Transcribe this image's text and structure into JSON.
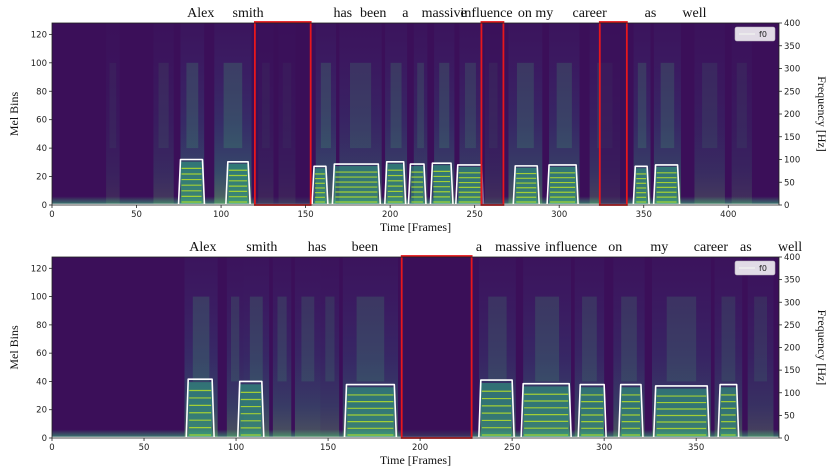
{
  "chart_data": [
    {
      "type": "heatmap",
      "title": "",
      "xlabel": "Time [Frames]",
      "ylabel": "Mel Bins",
      "ylabel_right": "Frequency [Hz]",
      "xlim": [
        0,
        430
      ],
      "ylim": [
        0,
        128
      ],
      "ylim_right": [
        0,
        400
      ],
      "x_ticks": [
        0,
        50,
        100,
        150,
        200,
        250,
        300,
        350,
        400
      ],
      "y_ticks": [
        0,
        20,
        40,
        60,
        80,
        100,
        120
      ],
      "y_ticks_right": [
        0,
        50,
        100,
        150,
        200,
        250,
        300,
        350,
        400
      ],
      "legend": {
        "label": "f0",
        "position": "top-right"
      },
      "words": [
        {
          "text": "Alex",
          "x": 88
        },
        {
          "text": "smith",
          "x": 116
        },
        {
          "text": "has",
          "x": 172
        },
        {
          "text": "been",
          "x": 190
        },
        {
          "text": "a",
          "x": 209
        },
        {
          "text": "massive",
          "x": 232
        },
        {
          "text": "influence",
          "x": 257
        },
        {
          "text": "on my",
          "x": 286
        },
        {
          "text": "career",
          "x": 318
        },
        {
          "text": "as",
          "x": 354
        },
        {
          "text": "well",
          "x": 380
        }
      ],
      "highlight_regions": [
        [
          120,
          153
        ],
        [
          254,
          267
        ],
        [
          324,
          340
        ]
      ],
      "voiced_segments": [
        {
          "x": [
            76,
            89
          ],
          "f0": 100
        },
        {
          "x": [
            104,
            116
          ],
          "f0": 95
        },
        {
          "x": [
            155,
            162
          ],
          "f0": 85
        },
        {
          "x": [
            167,
            193
          ],
          "f0": 90
        },
        {
          "x": [
            198,
            208
          ],
          "f0": 95
        },
        {
          "x": [
            212,
            220
          ],
          "f0": 90
        },
        {
          "x": [
            225,
            236
          ],
          "f0": 92
        },
        {
          "x": [
            240,
            254
          ],
          "f0": 88
        },
        {
          "x": [
            274,
            287
          ],
          "f0": 86
        },
        {
          "x": [
            294,
            310
          ],
          "f0": 88
        },
        {
          "x": [
            345,
            352
          ],
          "f0": 85
        },
        {
          "x": [
            357,
            370
          ],
          "f0": 88
        }
      ],
      "voiced_rows": [
        12,
        14,
        16,
        22
      ],
      "spectral_columns": [
        {
          "x": [
            32,
            40
          ],
          "level": 0.18
        },
        {
          "x": [
            60,
            72
          ],
          "level": 0.28
        },
        {
          "x": [
            76,
            90
          ],
          "level": 0.55
        },
        {
          "x": [
            96,
            118
          ],
          "level": 0.6
        },
        {
          "x": [
            122,
            131
          ],
          "level": 0.4
        },
        {
          "x": [
            134,
            144
          ],
          "level": 0.35
        },
        {
          "x": [
            156,
            168
          ],
          "level": 0.55
        },
        {
          "x": [
            170,
            195
          ],
          "level": 0.45
        },
        {
          "x": [
            197,
            210
          ],
          "level": 0.5
        },
        {
          "x": [
            214,
            222
          ],
          "level": 0.45
        },
        {
          "x": [
            226,
            238
          ],
          "level": 0.5
        },
        {
          "x": [
            241,
            254
          ],
          "level": 0.45
        },
        {
          "x": [
            256,
            266
          ],
          "level": 0.55
        },
        {
          "x": [
            270,
            290
          ],
          "level": 0.5
        },
        {
          "x": [
            294,
            312
          ],
          "level": 0.5
        },
        {
          "x": [
            318,
            336
          ],
          "level": 0.35
        },
        {
          "x": [
            344,
            354
          ],
          "level": 0.5
        },
        {
          "x": [
            356,
            372
          ],
          "level": 0.5
        },
        {
          "x": [
            380,
            398
          ],
          "level": 0.3
        },
        {
          "x": [
            402,
            414
          ],
          "level": 0.22
        }
      ]
    },
    {
      "type": "heatmap",
      "title": "",
      "xlabel": "Time [Frames]",
      "ylabel": "Mel Bins",
      "ylabel_right": "Frequency [Hz]",
      "xlim": [
        0,
        395
      ],
      "ylim": [
        0,
        128
      ],
      "ylim_right": [
        0,
        400
      ],
      "x_ticks": [
        0,
        50,
        100,
        150,
        200,
        250,
        300,
        350
      ],
      "y_ticks": [
        0,
        20,
        40,
        60,
        80,
        100,
        120
      ],
      "y_ticks_right": [
        0,
        50,
        100,
        150,
        200,
        250,
        300,
        350,
        400
      ],
      "legend": {
        "label": "f0",
        "position": "top-right"
      },
      "words": [
        {
          "text": "Alex",
          "x": 82
        },
        {
          "text": "smith",
          "x": 114
        },
        {
          "text": "has",
          "x": 144
        },
        {
          "text": "been",
          "x": 170
        },
        {
          "text": "a",
          "x": 232
        },
        {
          "text": "massive",
          "x": 253
        },
        {
          "text": "influence",
          "x": 282
        },
        {
          "text": "on",
          "x": 306
        },
        {
          "text": "my",
          "x": 330
        },
        {
          "text": "career",
          "x": 358
        },
        {
          "text": "as",
          "x": 377
        },
        {
          "text": "well",
          "x": 401
        }
      ],
      "highlight_regions": [
        [
          190,
          228
        ]
      ],
      "voiced_segments": [
        {
          "x": [
            74,
            87
          ],
          "f0": 130
        },
        {
          "x": [
            102,
            114
          ],
          "f0": 125
        },
        {
          "x": [
            160,
            186
          ],
          "f0": 118
        },
        {
          "x": [
            233,
            250
          ],
          "f0": 128
        },
        {
          "x": [
            256,
            281
          ],
          "f0": 120
        },
        {
          "x": [
            287,
            300
          ],
          "f0": 118
        },
        {
          "x": [
            309,
            320
          ],
          "f0": 118
        },
        {
          "x": [
            328,
            356
          ],
          "f0": 115
        },
        {
          "x": [
            363,
            372
          ],
          "f0": 118
        }
      ],
      "voiced_rows": [
        12,
        14,
        16,
        22
      ],
      "spectral_columns": [
        {
          "x": [
            72,
            90
          ],
          "level": 0.55
        },
        {
          "x": [
            95,
            104
          ],
          "level": 0.45
        },
        {
          "x": [
            104,
            118
          ],
          "level": 0.5
        },
        {
          "x": [
            120,
            130
          ],
          "level": 0.45
        },
        {
          "x": [
            132,
            146
          ],
          "level": 0.45
        },
        {
          "x": [
            146,
            156
          ],
          "level": 0.4
        },
        {
          "x": [
            158,
            188
          ],
          "level": 0.5
        },
        {
          "x": [
            232,
            252
          ],
          "level": 0.45
        },
        {
          "x": [
            256,
            282
          ],
          "level": 0.5
        },
        {
          "x": [
            284,
            300
          ],
          "level": 0.45
        },
        {
          "x": [
            305,
            322
          ],
          "level": 0.45
        },
        {
          "x": [
            326,
            358
          ],
          "level": 0.45
        },
        {
          "x": [
            360,
            375
          ],
          "level": 0.4
        },
        {
          "x": [
            378,
            392
          ],
          "level": 0.35
        }
      ]
    }
  ]
}
